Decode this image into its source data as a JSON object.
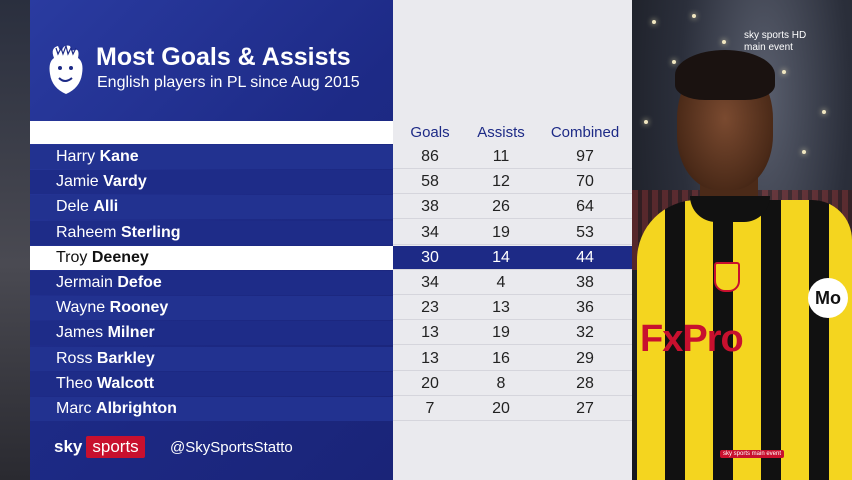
{
  "title": "Most Goals & Assists",
  "subtitle": "English players in PL since Aug 2015",
  "columns": [
    "Goals",
    "Assists",
    "Combined"
  ],
  "rows": [
    {
      "first": "Harry",
      "last": "Kane",
      "goals": "86",
      "assists": "11",
      "combined": "97"
    },
    {
      "first": "Jamie",
      "last": "Vardy",
      "goals": "58",
      "assists": "12",
      "combined": "70"
    },
    {
      "first": "Dele",
      "last": "Alli",
      "goals": "38",
      "assists": "26",
      "combined": "64"
    },
    {
      "first": "Raheem",
      "last": "Sterling",
      "goals": "34",
      "assists": "19",
      "combined": "53"
    },
    {
      "first": "Troy",
      "last": "Deeney",
      "goals": "30",
      "assists": "14",
      "combined": "44"
    },
    {
      "first": "Jermain",
      "last": "Defoe",
      "goals": "34",
      "assists": "4",
      "combined": "38"
    },
    {
      "first": "Wayne",
      "last": "Rooney",
      "goals": "23",
      "assists": "13",
      "combined": "36"
    },
    {
      "first": "James",
      "last": "Milner",
      "goals": "13",
      "assists": "19",
      "combined": "32"
    },
    {
      "first": "Ross",
      "last": "Barkley",
      "goals": "13",
      "assists": "16",
      "combined": "29"
    },
    {
      "first": "Theo",
      "last": "Walcott",
      "goals": "20",
      "assists": "8",
      "combined": "28"
    },
    {
      "first": "Marc",
      "last": "Albrighton",
      "goals": "7",
      "assists": "20",
      "combined": "27"
    }
  ],
  "highlight_row": 4,
  "footer": {
    "brand_sky": "sky",
    "brand_sports": "sports",
    "handle": "@SkySportsStatto"
  },
  "channel": {
    "line1": "sky sports HD",
    "line2": "main event"
  },
  "corner_bug": "sky sports main event",
  "shirt": {
    "sponsor": "FxPro",
    "sleeve_badge": "Mo"
  },
  "colors": {
    "navy": "#1d2a86",
    "sky_red": "#c8102e",
    "watford_yellow": "#f4d51f"
  },
  "icons": [
    "premier-league-lion-icon"
  ]
}
